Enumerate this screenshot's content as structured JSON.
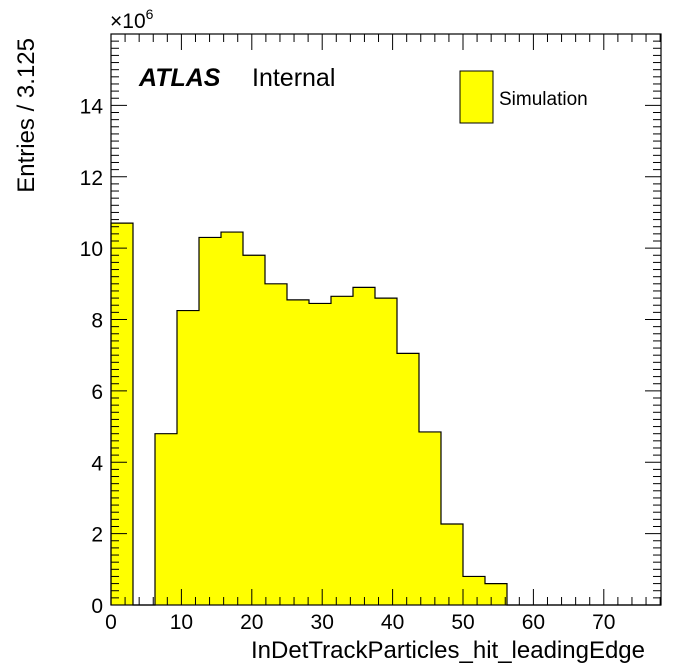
{
  "chart_data": {
    "type": "bar",
    "histogram": true,
    "bin_width": 3.125,
    "bin_edges_start": 0,
    "values": [
      10.7,
      0,
      4.8,
      8.25,
      10.3,
      10.45,
      9.8,
      9.0,
      8.55,
      8.45,
      8.65,
      8.9,
      8.6,
      7.05,
      4.85,
      2.27,
      0.8,
      0.6,
      0,
      0,
      0,
      0,
      0,
      0,
      0
    ],
    "series": [
      {
        "name": "Simulation",
        "color": "#ffff00"
      }
    ],
    "xlabel": "InDetTrackParticles_hit_leadingEdge",
    "ylabel": "Entries / 3.125",
    "xlim": [
      0,
      78.125
    ],
    "ylim": [
      0,
      16
    ],
    "x_ticks": [
      "0",
      "10",
      "20",
      "30",
      "40",
      "50",
      "60",
      "70"
    ],
    "y_ticks": [
      "0",
      "2",
      "4",
      "6",
      "8",
      "10",
      "12",
      "14"
    ],
    "y_multiplier": "×10",
    "y_multiplier_exp": "6",
    "legend_position": "top-right",
    "grid": false
  },
  "labels": {
    "atlas": "ATLAS",
    "internal": "Internal"
  },
  "colors": {
    "fill": "#ffff00",
    "line": "#000000"
  }
}
